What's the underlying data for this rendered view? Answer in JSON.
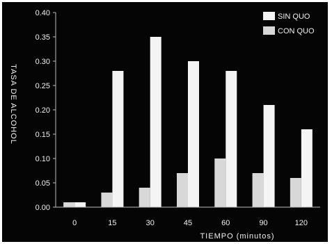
{
  "chart_data": {
    "type": "bar",
    "title": "",
    "xlabel": "TIEMPO (minutos)",
    "ylabel": "TASA DE ALCOHOL",
    "categories": [
      "0",
      "15",
      "30",
      "45",
      "60",
      "90",
      "120"
    ],
    "series": [
      {
        "name": "SIN QUO",
        "values": [
          0.01,
          0.28,
          0.35,
          0.3,
          0.28,
          0.21,
          0.16
        ]
      },
      {
        "name": "CON QUO",
        "values": [
          0.01,
          0.03,
          0.04,
          0.07,
          0.1,
          0.07,
          0.06
        ]
      }
    ],
    "ylim": [
      0,
      0.4
    ],
    "yticks": [
      "0.00",
      "0.05",
      "0.10",
      "0.15",
      "0.20",
      "0.25",
      "0.30",
      "0.35",
      "0.40"
    ],
    "grid": false,
    "legend_position": "top-right"
  },
  "colors": {
    "background": "#050505",
    "sin_quo": "#f4f4f4",
    "con_quo": "#d8d8d8",
    "axis": "#bdbdbd",
    "text": "#f2f2f2"
  }
}
